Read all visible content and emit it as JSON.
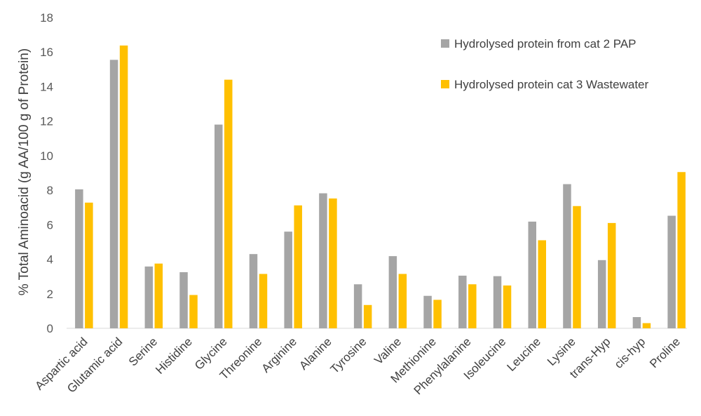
{
  "chart_data": {
    "type": "bar",
    "title": "",
    "xlabel": "",
    "ylabel": "% Total Aminoacid (g AA/100 g of Protein)",
    "ylim": [
      0,
      18
    ],
    "yticks": [
      0,
      2,
      4,
      6,
      8,
      10,
      12,
      14,
      16,
      18
    ],
    "grid": false,
    "legend_position": "top-right",
    "categories": [
      "Aspartic acid",
      "Glutamic acid",
      "Serine",
      "Histidine",
      "Glycine",
      "Threonine",
      "Arginine",
      "Alanine",
      "Tyrosine",
      "Valine",
      "Methionine",
      "Phenylalanine",
      "Isoleucine",
      "Leucine",
      "Lysine",
      "trans-Hyp",
      "cis-hyp",
      "Proline"
    ],
    "series": [
      {
        "name": "Hydrolysed protein from cat 2 PAP",
        "color": "#A5A5A5",
        "values": [
          8.05,
          15.55,
          3.58,
          3.25,
          11.8,
          4.3,
          5.6,
          7.82,
          2.55,
          4.18,
          1.88,
          3.05,
          3.02,
          6.18,
          8.35,
          3.95,
          0.65,
          6.52
        ]
      },
      {
        "name": "Hydrolysed protein cat 3 Wastewater",
        "color": "#FFC000",
        "values": [
          7.28,
          16.38,
          3.75,
          1.93,
          14.4,
          3.15,
          7.12,
          7.52,
          1.35,
          3.15,
          1.65,
          2.55,
          2.48,
          5.1,
          7.08,
          6.1,
          0.3,
          9.05
        ]
      }
    ]
  }
}
